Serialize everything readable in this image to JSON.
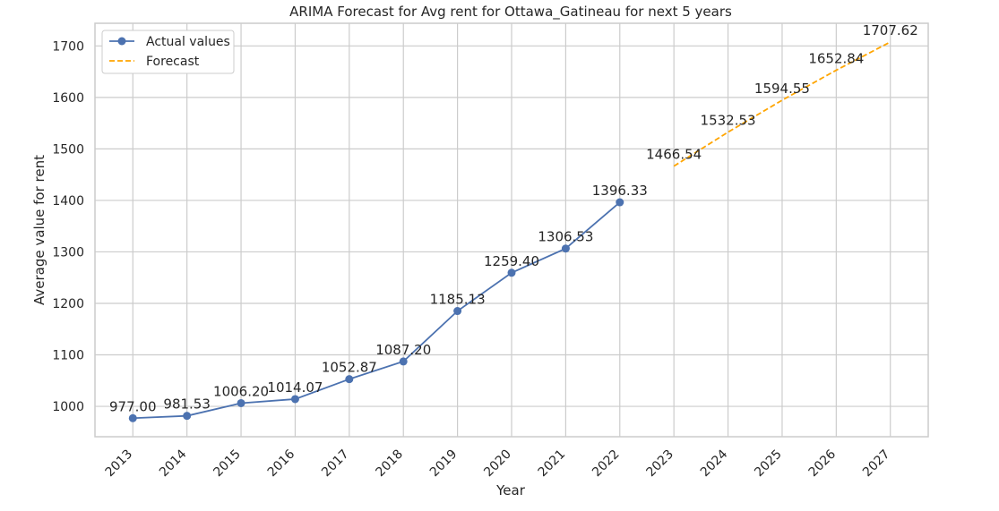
{
  "chart_data": {
    "type": "line",
    "title": "ARIMA Forecast for Avg rent for Ottawa_Gatineau for next 5 years",
    "xlabel": "Year",
    "ylabel": "Average value for rent",
    "x_ticks": [
      "2013",
      "2014",
      "2015",
      "2016",
      "2017",
      "2018",
      "2019",
      "2020",
      "2021",
      "2022",
      "2023",
      "2024",
      "2025",
      "2026",
      "2027"
    ],
    "y_ticks": [
      1000,
      1100,
      1200,
      1300,
      1400,
      1500,
      1600,
      1700
    ],
    "xlim": [
      2012.3,
      2027.7
    ],
    "ylim": [
      941,
      1744
    ],
    "grid": true,
    "legend_position": "upper-left",
    "series": [
      {
        "name": "Actual values",
        "style": "solid-marker",
        "color": "#4c72b0",
        "x": [
          2013,
          2014,
          2015,
          2016,
          2017,
          2018,
          2019,
          2020,
          2021,
          2022
        ],
        "values": [
          977.0,
          981.53,
          1006.2,
          1014.07,
          1052.87,
          1087.2,
          1185.13,
          1259.4,
          1306.53,
          1396.33
        ],
        "labels": [
          "977.00",
          "981.53",
          "1006.20",
          "1014.07",
          "1052.87",
          "1087.20",
          "1185.13",
          "1259.40",
          "1306.53",
          "1396.33"
        ]
      },
      {
        "name": "Forecast",
        "style": "dashed",
        "color": "#ffa500",
        "x": [
          2023,
          2024,
          2025,
          2026,
          2027
        ],
        "values": [
          1466.54,
          1532.53,
          1594.55,
          1652.84,
          1707.62
        ],
        "labels": [
          "1466.54",
          "1532.53",
          "1594.55",
          "1652.84",
          "1707.62"
        ]
      }
    ]
  }
}
